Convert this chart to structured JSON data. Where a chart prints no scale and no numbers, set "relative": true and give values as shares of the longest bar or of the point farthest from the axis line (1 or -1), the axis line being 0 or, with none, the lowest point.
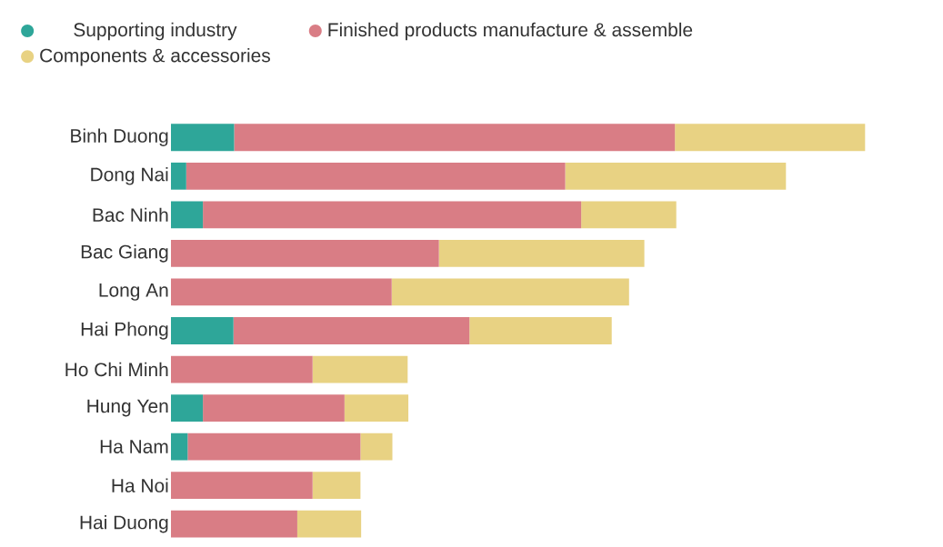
{
  "chart_data": {
    "type": "bar",
    "orientation": "horizontal",
    "stacked": true,
    "relative": true,
    "legend": "top left",
    "categories": [
      "Binh Duong",
      "Dong Nai",
      "Bac Ninh",
      "Bac Giang",
      "Long An",
      "Hai Phong",
      "Ho Chi Minh",
      "Hung Yen",
      "Ha Nam",
      "Ha Noi",
      "Hai Duong"
    ],
    "series": [
      {
        "name": "Supporting industry",
        "color": "#2ea699",
        "values": [
          0.091,
          0.022,
          0.046,
          0,
          0,
          0.09,
          0,
          0.046,
          0.024,
          0,
          0
        ]
      },
      {
        "name": "Finished products manufacture & assemble",
        "color": "#d97d85",
        "values": [
          0.635,
          0.546,
          0.545,
          0.386,
          0.318,
          0.34,
          0.204,
          0.204,
          0.249,
          0.204,
          0.182
        ]
      },
      {
        "name": "Components & accessories",
        "color": "#e8d283",
        "values": [
          0.274,
          0.318,
          0.137,
          0.296,
          0.342,
          0.205,
          0.137,
          0.092,
          0.046,
          0.069,
          0.092
        ]
      }
    ]
  }
}
